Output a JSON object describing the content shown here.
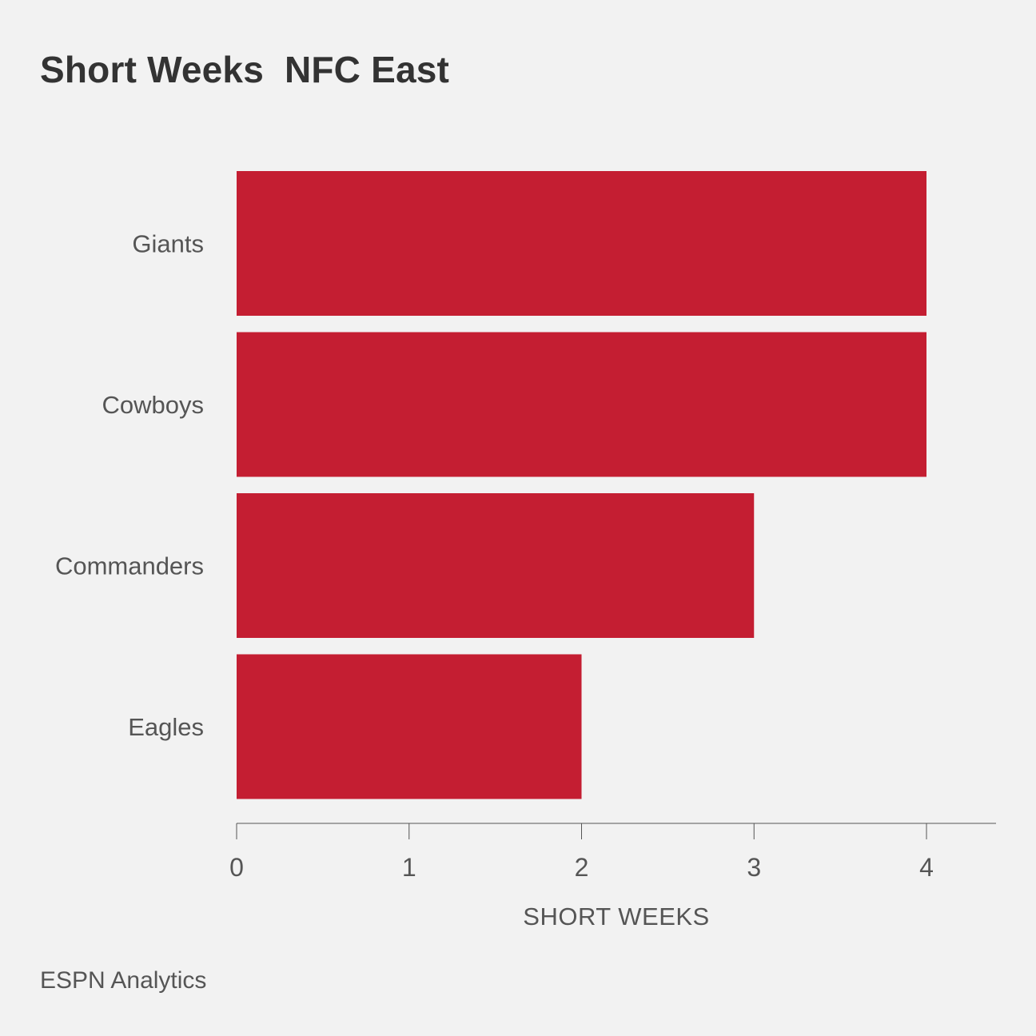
{
  "chart_data": {
    "type": "bar",
    "orientation": "horizontal",
    "title": "Short Weeks  NFC East",
    "categories": [
      "Giants",
      "Cowboys",
      "Commanders",
      "Eagles"
    ],
    "values": [
      4,
      4,
      3,
      2
    ],
    "xlabel": "SHORT WEEKS",
    "ylabel": "",
    "xlim": [
      0,
      4.4
    ],
    "xticks": [
      0,
      1,
      2,
      3,
      4
    ],
    "xtick_labels": [
      "0",
      "1",
      "2",
      "3",
      "4"
    ],
    "grid": false,
    "bar_color": "#c41e32"
  },
  "source": "ESPN Analytics"
}
